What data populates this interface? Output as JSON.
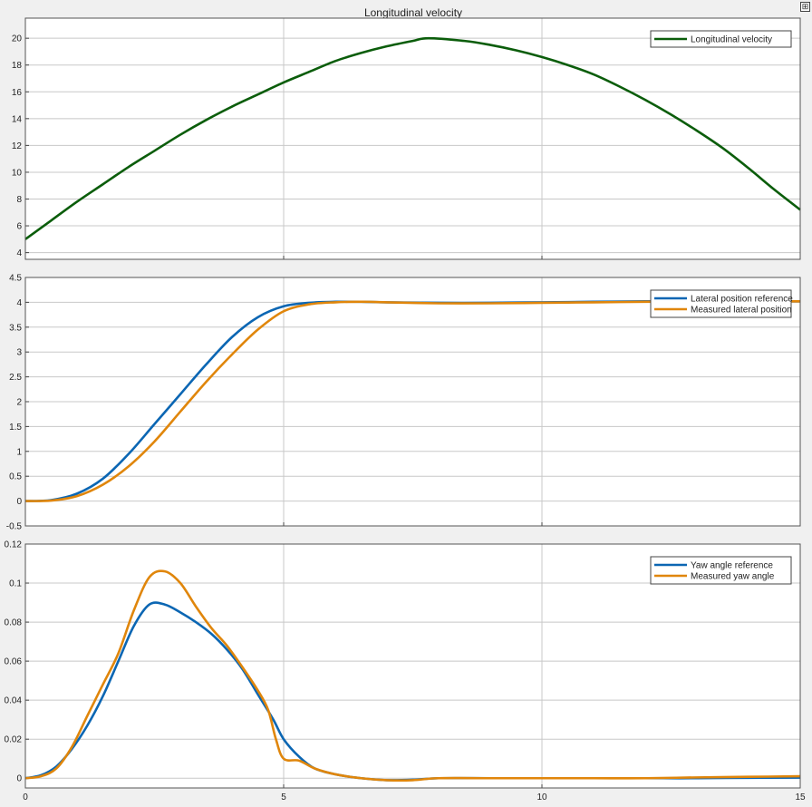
{
  "window": {
    "title": "Longitudinal velocity",
    "corner_button_icon": "expand-icon"
  },
  "colors": {
    "background": "#f0f0f0",
    "axes_bg": "#ffffff",
    "grid": "#c8c8c8",
    "green": "#0b5d0b",
    "blue": "#0b66b3",
    "orange": "#e0860b"
  },
  "chart_data": [
    {
      "type": "line",
      "title": "Longitudinal velocity",
      "xlabel": "",
      "ylabel": "",
      "xlim": [
        0,
        15
      ],
      "ylim": [
        3.5,
        21.5
      ],
      "xticks": [
        0,
        5,
        10,
        15
      ],
      "yticks": [
        4,
        6,
        8,
        10,
        12,
        14,
        16,
        18,
        20
      ],
      "ytick_labels": [
        "4",
        "6",
        "8",
        "10",
        "12",
        "14",
        "16",
        "18",
        "20"
      ],
      "xtick_labels": [
        "",
        "",
        "",
        ""
      ],
      "grid": true,
      "legend_position": "top-right",
      "series": [
        {
          "name": "Longitudinal velocity",
          "color": "green",
          "x": [
            0,
            0.5,
            1,
            1.5,
            2,
            2.5,
            3,
            3.5,
            4,
            4.5,
            5,
            5.5,
            6,
            6.5,
            7,
            7.5,
            7.8,
            8.5,
            9,
            9.5,
            10,
            10.5,
            11,
            11.5,
            12,
            12.5,
            13,
            13.5,
            14,
            14.5,
            15
          ],
          "y": [
            5.0,
            6.4,
            7.8,
            9.1,
            10.4,
            11.6,
            12.8,
            13.9,
            14.9,
            15.8,
            16.7,
            17.5,
            18.3,
            18.9,
            19.4,
            19.8,
            20.0,
            19.8,
            19.5,
            19.1,
            18.6,
            18.0,
            17.3,
            16.4,
            15.4,
            14.3,
            13.1,
            11.8,
            10.3,
            8.7,
            7.2
          ]
        }
      ]
    },
    {
      "type": "line",
      "title": "",
      "xlabel": "",
      "ylabel": "",
      "xlim": [
        0,
        15
      ],
      "ylim": [
        -0.5,
        4.5
      ],
      "xticks": [
        0,
        5,
        10,
        15
      ],
      "yticks": [
        -0.5,
        0,
        0.5,
        1,
        1.5,
        2,
        2.5,
        3,
        3.5,
        4,
        4.5
      ],
      "ytick_labels": [
        "-0.5",
        "0",
        "0.5",
        "1",
        "1.5",
        "2",
        "2.5",
        "3",
        "3.5",
        "4",
        "4.5"
      ],
      "xtick_labels": [
        "",
        "",
        "",
        ""
      ],
      "grid": true,
      "legend_position": "top-right",
      "series": [
        {
          "name": "Lateral position reference",
          "color": "blue",
          "x": [
            0,
            0.5,
            1,
            1.5,
            2,
            2.5,
            3,
            3.5,
            4,
            4.5,
            5,
            5.5,
            6,
            6.5,
            7,
            8,
            9,
            10,
            11,
            12,
            13,
            14,
            15
          ],
          "y": [
            0,
            0.02,
            0.15,
            0.45,
            0.95,
            1.55,
            2.15,
            2.75,
            3.3,
            3.7,
            3.92,
            3.99,
            4.01,
            4.01,
            4.0,
            3.99,
            3.99,
            4.0,
            4.01,
            4.02,
            4.02,
            4.02,
            4.02
          ]
        },
        {
          "name": "Measured lateral position",
          "color": "orange",
          "x": [
            0,
            0.5,
            1,
            1.5,
            2,
            2.5,
            3,
            3.5,
            4,
            4.5,
            5,
            5.5,
            6,
            6.5,
            7,
            8,
            9,
            10,
            11,
            12,
            13,
            14,
            15
          ],
          "y": [
            0,
            0.01,
            0.1,
            0.33,
            0.7,
            1.2,
            1.8,
            2.4,
            2.95,
            3.45,
            3.82,
            3.96,
            4.0,
            4.01,
            4.0,
            3.98,
            3.98,
            3.99,
            4.0,
            4.01,
            4.02,
            4.02,
            4.02
          ]
        }
      ]
    },
    {
      "type": "line",
      "title": "",
      "xlabel": "",
      "ylabel": "",
      "xlim": [
        0,
        15
      ],
      "ylim": [
        -0.005,
        0.12
      ],
      "xticks": [
        0,
        5,
        10,
        15
      ],
      "yticks": [
        0,
        0.02,
        0.04,
        0.06,
        0.08,
        0.1,
        0.12
      ],
      "ytick_labels": [
        "0",
        "0.02",
        "0.04",
        "0.06",
        "0.08",
        "0.1",
        "0.12"
      ],
      "xtick_labels": [
        "0",
        "5",
        "10",
        "15"
      ],
      "grid": true,
      "legend_position": "top-right",
      "series": [
        {
          "name": "Yaw angle reference",
          "color": "blue",
          "x": [
            0,
            0.3,
            0.6,
            0.9,
            1.2,
            1.5,
            1.8,
            2.1,
            2.4,
            2.7,
            3.0,
            3.3,
            3.6,
            3.9,
            4.2,
            4.5,
            4.8,
            5.0,
            5.3,
            5.6,
            6.0,
            6.5,
            7.0,
            7.5,
            8,
            9,
            10,
            11,
            12,
            13,
            14,
            15
          ],
          "y": [
            0,
            0.0015,
            0.006,
            0.015,
            0.027,
            0.042,
            0.06,
            0.078,
            0.089,
            0.089,
            0.085,
            0.08,
            0.074,
            0.066,
            0.056,
            0.043,
            0.03,
            0.02,
            0.011,
            0.005,
            0.002,
            0.0,
            -0.001,
            -0.0008,
            0.0,
            0.0,
            0.0,
            0.0,
            0.0,
            0.0,
            0.0002,
            0.0003
          ]
        },
        {
          "name": "Measured yaw angle",
          "color": "orange",
          "x": [
            0,
            0.3,
            0.6,
            0.9,
            1.2,
            1.5,
            1.8,
            2.1,
            2.4,
            2.7,
            3.0,
            3.3,
            3.6,
            3.9,
            4.2,
            4.5,
            4.7,
            4.85,
            5.0,
            5.3,
            5.6,
            6.0,
            6.5,
            7.0,
            7.5,
            8,
            9,
            10,
            11,
            12,
            13,
            14,
            15
          ],
          "y": [
            0,
            0.001,
            0.005,
            0.016,
            0.032,
            0.048,
            0.064,
            0.086,
            0.103,
            0.106,
            0.1,
            0.088,
            0.077,
            0.068,
            0.057,
            0.045,
            0.035,
            0.02,
            0.01,
            0.009,
            0.005,
            0.002,
            0.0,
            -0.001,
            -0.001,
            0.0,
            0.0,
            0.0,
            0.0,
            0.0,
            0.0004,
            0.0007,
            0.001
          ]
        }
      ]
    }
  ]
}
